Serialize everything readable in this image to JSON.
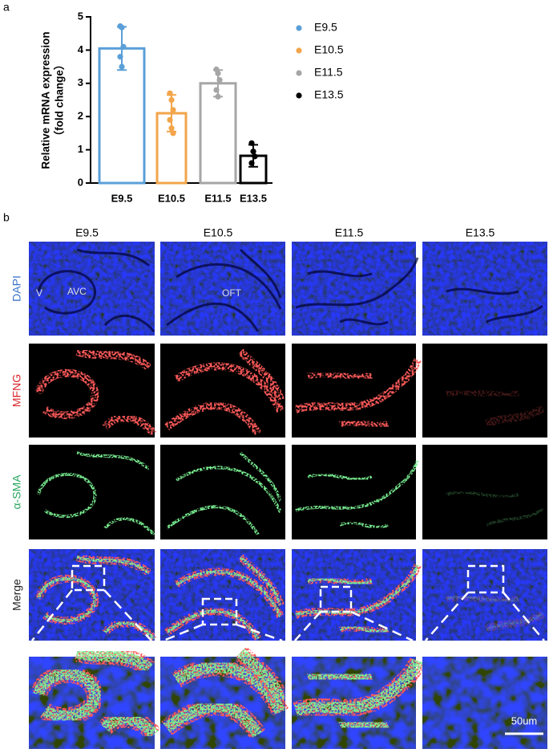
{
  "panel_labels": [
    "a",
    "b"
  ],
  "chart_data": {
    "type": "bar",
    "ylabel": [
      "Relative mRNA expression",
      "（fold change）"
    ],
    "categories": [
      "E9.5",
      "E10.5",
      "E11.5",
      "E13.5"
    ],
    "values": [
      4.05,
      2.1,
      3.0,
      0.82
    ],
    "errors": [
      0.65,
      0.55,
      0.4,
      0.33
    ],
    "points": [
      [
        4.72,
        4.68,
        4.1,
        3.8,
        3.5
      ],
      [
        2.7,
        2.5,
        2.2,
        1.9,
        1.65,
        1.5
      ],
      [
        3.42,
        3.3,
        3.1,
        2.8,
        2.6
      ],
      [
        1.2,
        0.95,
        0.8,
        0.6
      ]
    ],
    "colors": [
      "#5b9fd8",
      "#f2a54a",
      "#a6a6a6",
      "#000000"
    ],
    "ylim": [
      0,
      5
    ],
    "yticks": [
      0,
      1,
      2,
      3,
      4,
      5
    ],
    "legend": "right"
  },
  "figure_b": {
    "columns": [
      "E9.5",
      "E10.5",
      "E11.5",
      "E13.5"
    ],
    "rows": [
      "DAPI",
      "MFNG",
      "α-SMA",
      "Merge"
    ],
    "row_colors": [
      "#3b74c9",
      "#d9262b",
      "#27a560",
      "#222222"
    ],
    "annotations": [
      "V",
      "AVC",
      "OFT"
    ],
    "scale_bar": "50um"
  }
}
